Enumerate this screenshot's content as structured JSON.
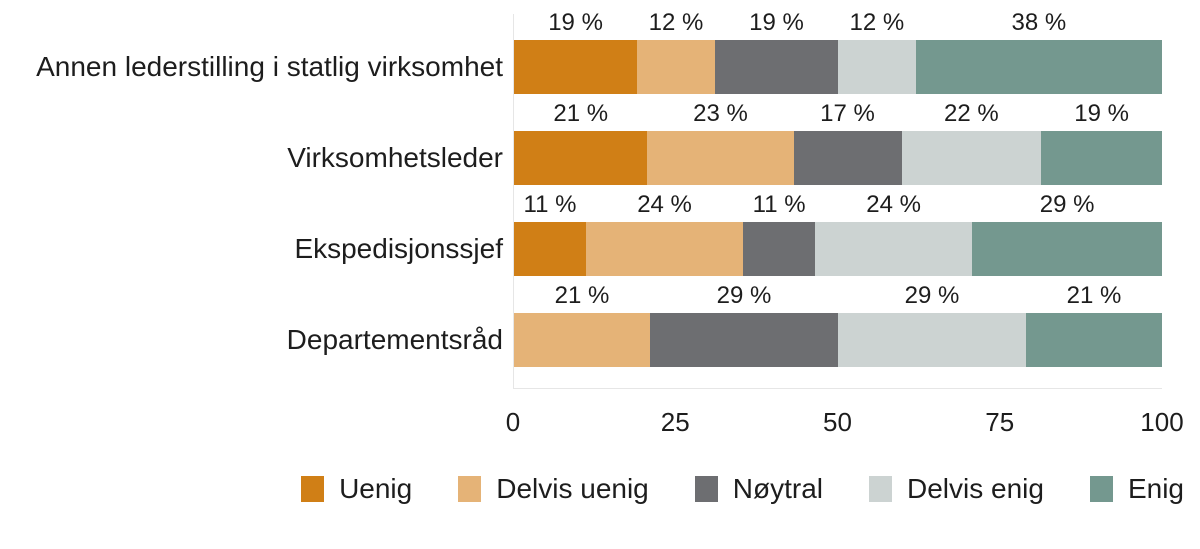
{
  "chart_data": {
    "type": "bar",
    "variant": "stacked-horizontal",
    "title": "",
    "xlabel": "",
    "ylabel": "",
    "xlim": [
      0,
      100
    ],
    "grid": false,
    "legend_position": "bottom",
    "categories": [
      "Annen lederstilling i statlig virksomhet",
      "Virksomhetsleder",
      "Ekspedisjonssjef",
      "Departementsråd"
    ],
    "x_ticks": [
      "0",
      "25",
      "50",
      "75",
      "100"
    ],
    "x_tick_values": [
      0,
      25,
      50,
      75,
      100
    ],
    "series": [
      {
        "name": "Uenig",
        "color": "#d07f16",
        "values": [
          19,
          21,
          11,
          0
        ],
        "labels": [
          "19 %",
          "21 %",
          "11 %",
          null
        ]
      },
      {
        "name": "Delvis uenig",
        "color": "#e5b377",
        "values": [
          12,
          23,
          24,
          21
        ],
        "labels": [
          "12 %",
          "23 %",
          "24 %",
          "21 %"
        ]
      },
      {
        "name": "Nøytral",
        "color": "#6d6e71",
        "values": [
          19,
          17,
          11,
          29
        ],
        "labels": [
          "19 %",
          "17 %",
          "11 %",
          "29 %"
        ]
      },
      {
        "name": "Delvis enig",
        "color": "#ccd3d2",
        "values": [
          12,
          22,
          24,
          29
        ],
        "labels": [
          "12 %",
          "22 %",
          "24 %",
          "29 %"
        ]
      },
      {
        "name": "Enig",
        "color": "#74988f",
        "values": [
          38,
          19,
          29,
          21
        ],
        "labels": [
          "38 %",
          "19 %",
          "29 %",
          "21 %"
        ]
      }
    ],
    "colors": {
      "text": "#1d1d1d",
      "axis_line": "#e6e6e6",
      "background": "#ffffff"
    }
  }
}
